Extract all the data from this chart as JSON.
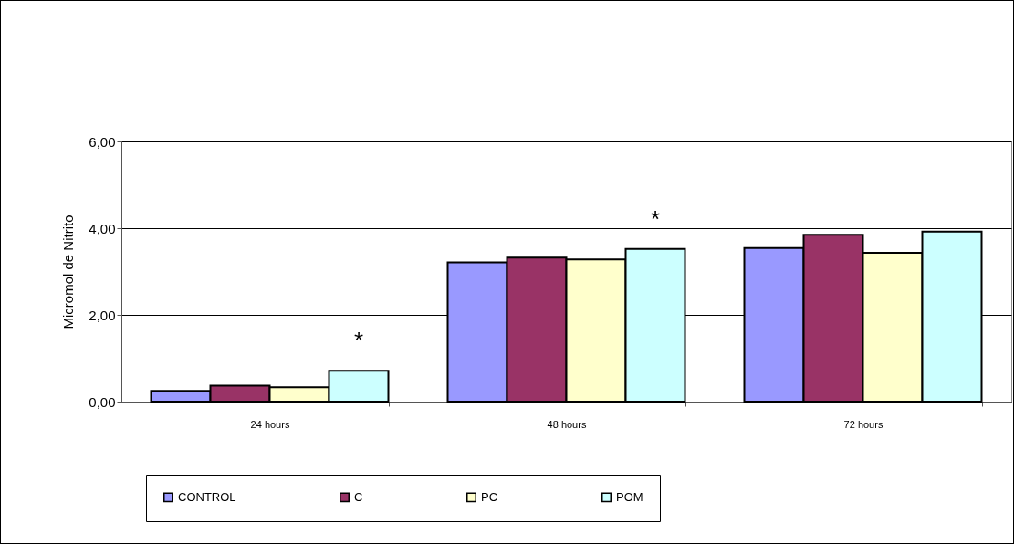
{
  "chart_data": {
    "type": "bar",
    "ylabel": "Micromol de Nitrito",
    "categories": [
      "24 hours",
      "48 hours",
      "72 hours"
    ],
    "series": [
      {
        "name": "CONTROL",
        "color": "#9999ff",
        "values": [
          0.25,
          3.21,
          3.54
        ]
      },
      {
        "name": "C",
        "color": "#993366",
        "values": [
          0.37,
          3.32,
          3.85
        ]
      },
      {
        "name": "PC",
        "color": "#ffffcc",
        "values": [
          0.33,
          3.28,
          3.43
        ]
      },
      {
        "name": "POM",
        "color": "#ccffff",
        "values": [
          0.71,
          3.52,
          3.92
        ]
      }
    ],
    "ylim": [
      0,
      6
    ],
    "yticks": [
      {
        "value": 0,
        "label": "0,00"
      },
      {
        "value": 2,
        "label": "2,00"
      },
      {
        "value": 4,
        "label": "4,00"
      },
      {
        "value": 6,
        "label": "6,00"
      }
    ],
    "grid": "y",
    "legend": "bottom",
    "annotations": [
      "*",
      "*"
    ]
  }
}
